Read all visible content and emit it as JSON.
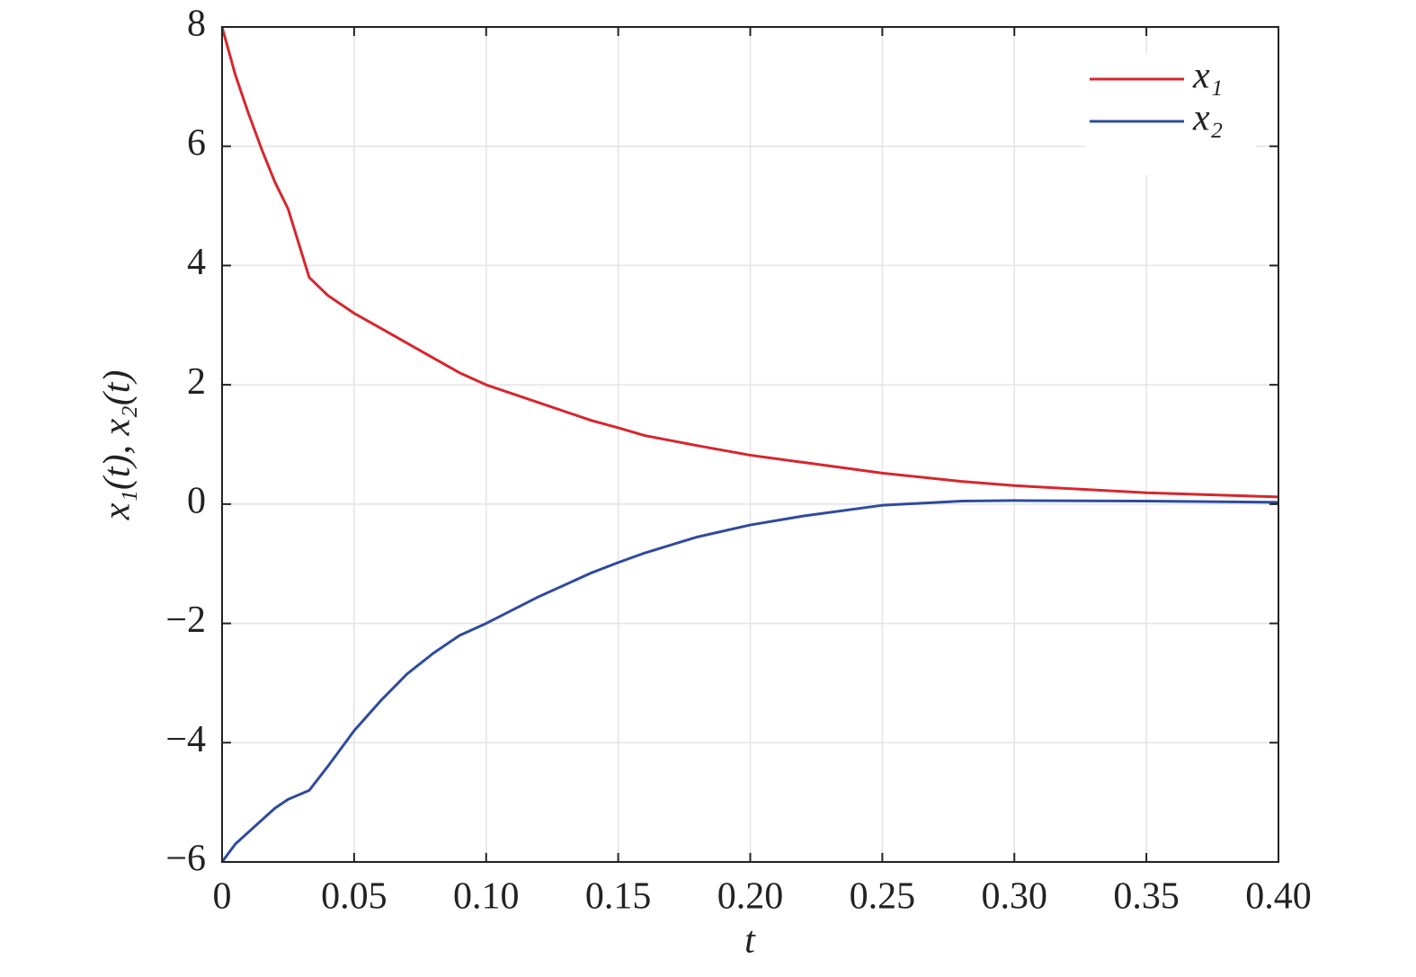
{
  "chart_data": {
    "type": "line",
    "xlabel": "t",
    "ylabel": "x₁(t), x₂(t)",
    "x": [
      0,
      0.005,
      0.01,
      0.015,
      0.02,
      0.025,
      0.033,
      0.04,
      0.05,
      0.06,
      0.07,
      0.08,
      0.09,
      0.1,
      0.12,
      0.14,
      0.15,
      0.16,
      0.18,
      0.2,
      0.22,
      0.25,
      0.28,
      0.3,
      0.35,
      0.4
    ],
    "series": [
      {
        "name": "x₁",
        "color": "#d7262d",
        "values": [
          8,
          7.2,
          6.55,
          5.95,
          5.4,
          4.95,
          3.8,
          3.5,
          3.2,
          2.95,
          2.7,
          2.45,
          2.2,
          2.0,
          1.7,
          1.4,
          1.28,
          1.15,
          0.98,
          0.82,
          0.7,
          0.52,
          0.38,
          0.31,
          0.19,
          0.12
        ]
      },
      {
        "name": "x₂",
        "color": "#2e4b9d",
        "values": [
          -6,
          -5.7,
          -5.5,
          -5.3,
          -5.1,
          -4.95,
          -4.8,
          -4.4,
          -3.8,
          -3.3,
          -2.85,
          -2.5,
          -2.2,
          -2.0,
          -1.55,
          -1.15,
          -0.98,
          -0.82,
          -0.55,
          -0.35,
          -0.2,
          -0.02,
          0.05,
          0.06,
          0.05,
          0.03
        ]
      }
    ],
    "xlim": [
      0,
      0.4
    ],
    "xticks": [
      0,
      0.05,
      {
        "value": 0.1,
        "label": "0.10"
      },
      0.15,
      {
        "value": 0.2,
        "label": "0.20"
      },
      0.25,
      {
        "value": 0.3,
        "label": "0.30"
      },
      0.35,
      {
        "value": 0.4,
        "label": "0.40"
      }
    ],
    "ylim": [
      -6,
      8
    ],
    "yticks": [
      {
        "value": -6,
        "label": "−6"
      },
      {
        "value": -4,
        "label": "−4"
      },
      {
        "value": -2,
        "label": "−2"
      },
      0,
      2,
      4,
      6,
      8
    ],
    "grid": true,
    "legend": "upper right"
  }
}
